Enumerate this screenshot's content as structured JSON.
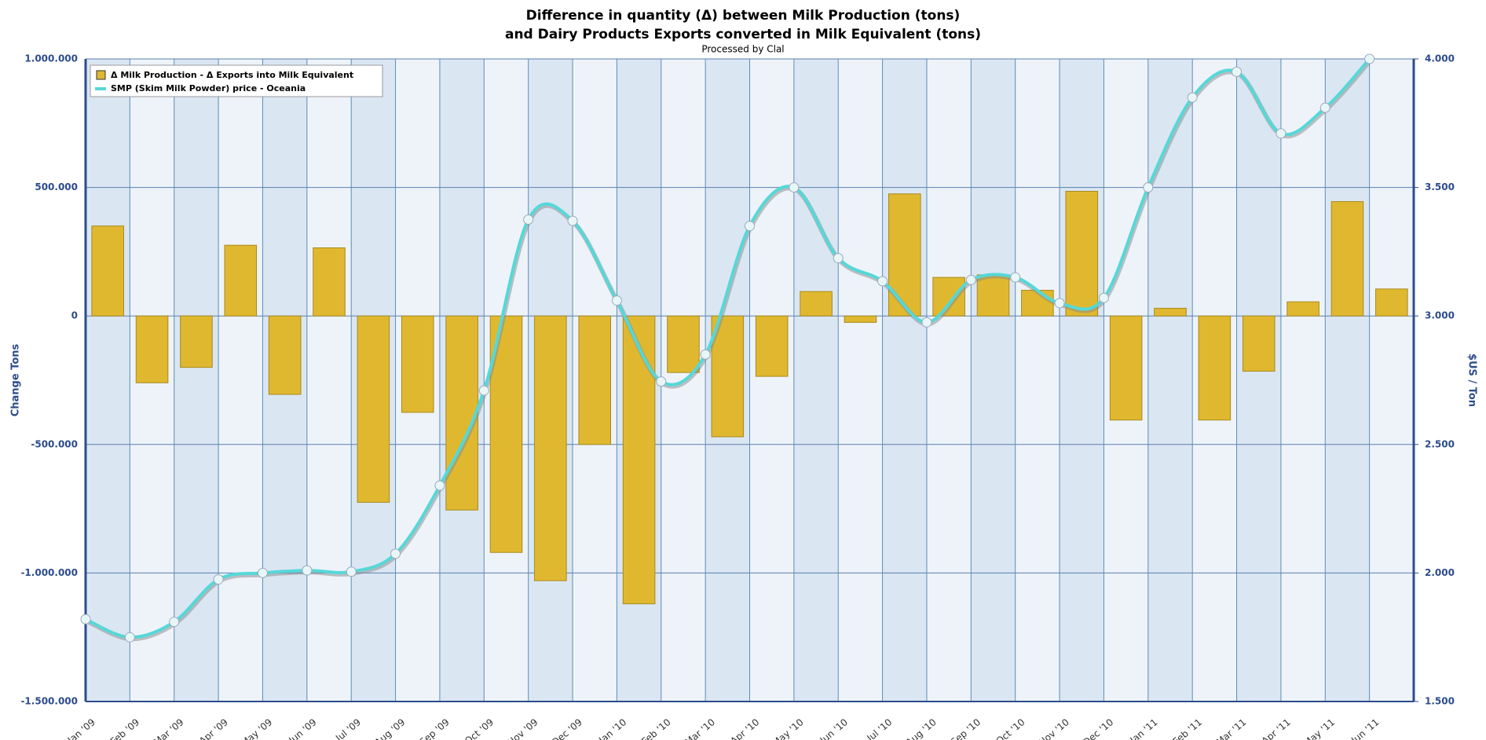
{
  "chart_data": {
    "type": "bar_line",
    "title": "Difference in quantity (Δ) between Milk Production (tons)",
    "title_line2": "and Dairy Products Exports converted in Milk Equivalent (tons)",
    "subtitle": "Processed by Clal",
    "y_label": "Change Tons",
    "y2_label": "$US / Ton",
    "categories": [
      "Jan '09",
      "Feb '09",
      "Mar '09",
      "Apr '09",
      "May '09",
      "Jun '09",
      "Jul '09",
      "Aug '09",
      "Sep '09",
      "Oct '09",
      "Nov '09",
      "Dec '09",
      "Jan '10",
      "Feb '10",
      "Mar '10",
      "Apr '10",
      "May '10",
      "Jun '10",
      "Jul '10",
      "Aug '10",
      "Sep '10",
      "Oct '10",
      "Nov '10",
      "Dec '10",
      "Jan '11",
      "Feb '11",
      "Mar '11",
      "Apr '11",
      "May '11",
      "Jun '11"
    ],
    "series": [
      {
        "name": "Δ Milk Production - Δ Exports into Milk Equivalent",
        "type": "bar",
        "color": "#e0b830",
        "values": [
          350000,
          -260000,
          -200000,
          275000,
          -305000,
          265000,
          -725000,
          -375000,
          -755000,
          -920000,
          -1030000,
          -500000,
          -1120000,
          -220000,
          -470000,
          -235000,
          95000,
          -25000,
          475000,
          150000,
          160000,
          100000,
          485000,
          -405000,
          30000,
          -405000,
          -215000,
          55000,
          445000,
          105000
        ]
      },
      {
        "name": "SMP (Skim Milk Powder) price - Oceania",
        "type": "line",
        "axis": "y2",
        "color": "#55d8d8",
        "values": [
          1820,
          1750,
          1810,
          1975,
          2000,
          2010,
          2005,
          2075,
          2340,
          2710,
          3375,
          3370,
          3060,
          2745,
          2850,
          3350,
          3500,
          3225,
          3135,
          2975,
          3140,
          3150,
          3050,
          3070,
          3500,
          3850,
          3950,
          3710,
          3810,
          4000
        ]
      }
    ],
    "ylim": [
      -1500000,
      1000000
    ],
    "yticks": [
      {
        "value": -1500000,
        "label": "-1.500.000"
      },
      {
        "value": -1000000,
        "label": "-1.000.000"
      },
      {
        "value": -500000,
        "label": "-500.000"
      },
      0,
      {
        "value": 500000,
        "label": "500.000"
      },
      {
        "value": 1000000,
        "label": "1.000.000"
      }
    ],
    "y2lim": [
      1500,
      4000
    ],
    "y2ticks": [
      {
        "value": 1500,
        "label": "1.500"
      },
      {
        "value": 2000,
        "label": "2.000"
      },
      {
        "value": 2500,
        "label": "2.500"
      },
      {
        "value": 3000,
        "label": "3.000"
      },
      {
        "value": 3500,
        "label": "3.500"
      },
      {
        "value": 4000,
        "label": "4.000"
      }
    ],
    "grid": true,
    "legend": "top-left"
  }
}
